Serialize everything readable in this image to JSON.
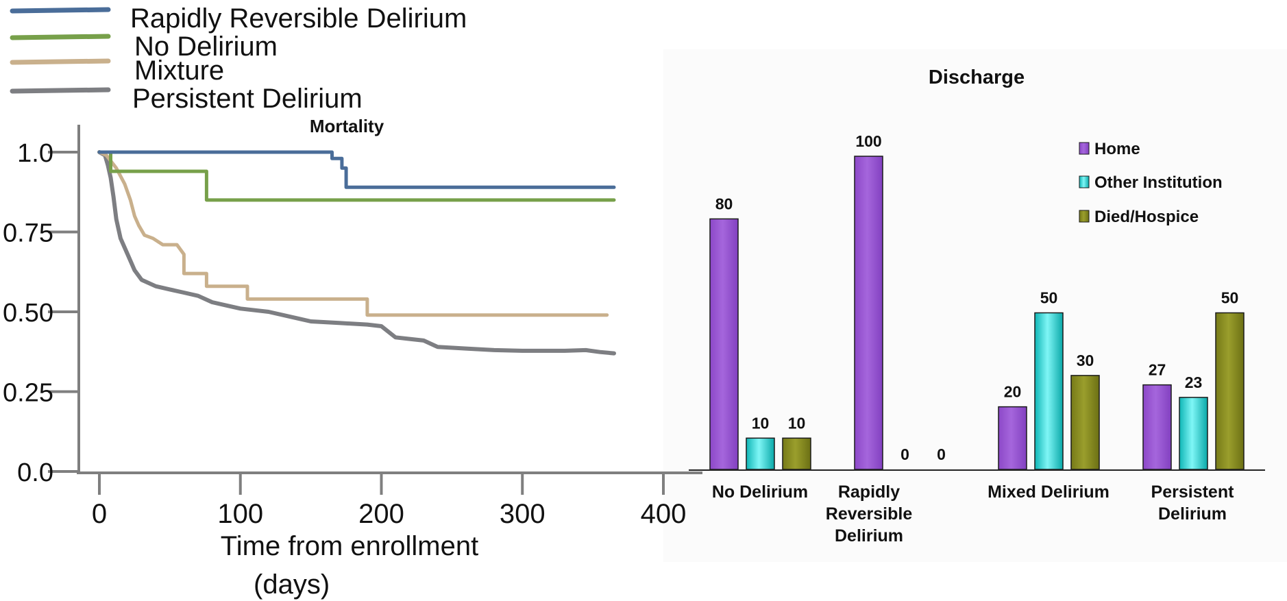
{
  "colors": {
    "rapid": "#4a6d99",
    "none": "#77a04a",
    "mixture": "#c9b08c",
    "persistent": "#7d7e82",
    "axis": "#7f7f7f",
    "home": "#9b59d0",
    "other": "#19d8d8",
    "died": "#868a22"
  },
  "chart_data": [
    {
      "type": "line",
      "title": "Mortality",
      "xlabel": "Time from enrollment (days)",
      "xlabel_lines": [
        "Time from enrollment",
        "(days)"
      ],
      "ylabel": "",
      "xlim": [
        0,
        400
      ],
      "ylim": [
        0,
        1
      ],
      "x_ticks": [
        0,
        100,
        200,
        300,
        400
      ],
      "x_tick_labels": [
        "0",
        "100",
        "200",
        "300",
        "400"
      ],
      "y_ticks": [
        0,
        0.25,
        0.5,
        0.75,
        1.0
      ],
      "y_tick_labels": [
        "0.0",
        "0.25",
        "0.50",
        "0.75",
        "1.0"
      ],
      "legend_position": "top-left",
      "series": [
        {
          "name": "Rapidly Reversible Delirium",
          "key": "rapid",
          "step": true,
          "x": [
            0,
            165,
            165,
            172,
            172,
            175,
            175,
            365
          ],
          "y": [
            1.0,
            1.0,
            0.98,
            0.98,
            0.95,
            0.95,
            0.89,
            0.89
          ]
        },
        {
          "name": "No Delirium",
          "key": "none",
          "step": true,
          "x": [
            0,
            8,
            8,
            76,
            76,
            365
          ],
          "y": [
            1.0,
            1.0,
            0.94,
            0.94,
            0.85,
            0.85
          ]
        },
        {
          "name": "Mixture",
          "key": "mixture",
          "step": true,
          "x": [
            0,
            5,
            12,
            18,
            22,
            25,
            28,
            32,
            38,
            45,
            55,
            60,
            60,
            76,
            76,
            105,
            105,
            190,
            190,
            360
          ],
          "y": [
            1.0,
            0.99,
            0.95,
            0.9,
            0.85,
            0.8,
            0.77,
            0.74,
            0.73,
            0.71,
            0.71,
            0.68,
            0.62,
            0.62,
            0.58,
            0.58,
            0.54,
            0.54,
            0.49,
            0.49
          ]
        },
        {
          "name": "Persistent Delirium",
          "key": "persistent",
          "step": false,
          "x": [
            0,
            4,
            6,
            8,
            10,
            12,
            15,
            20,
            25,
            30,
            40,
            50,
            60,
            70,
            80,
            90,
            100,
            120,
            140,
            150,
            170,
            190,
            200,
            210,
            220,
            230,
            240,
            260,
            280,
            300,
            330,
            345,
            355,
            365
          ],
          "y": [
            1.0,
            0.99,
            0.96,
            0.92,
            0.86,
            0.79,
            0.73,
            0.68,
            0.63,
            0.6,
            0.58,
            0.57,
            0.56,
            0.55,
            0.53,
            0.52,
            0.51,
            0.5,
            0.48,
            0.47,
            0.465,
            0.46,
            0.455,
            0.42,
            0.415,
            0.41,
            0.39,
            0.385,
            0.38,
            0.378,
            0.378,
            0.38,
            0.374,
            0.37
          ]
        }
      ]
    },
    {
      "type": "bar",
      "title": "Discharge",
      "xlabel": "",
      "ylabel": "",
      "ylim": [
        0,
        100
      ],
      "legend_position": "top-right",
      "categories": [
        "No Delirium",
        "Rapidly Reversible Delirium",
        "Mixed Delirium",
        "Persistent Delirium"
      ],
      "category_lines": [
        [
          "No Delirium"
        ],
        [
          "Rapidly",
          "Reversible",
          "Delirium"
        ],
        [
          "Mixed Delirium"
        ],
        [
          "Persistent",
          "Delirium"
        ]
      ],
      "series": [
        {
          "name": "Home",
          "key": "home",
          "values": [
            80,
            100,
            20,
            27
          ]
        },
        {
          "name": "Other Institution",
          "key": "other",
          "values": [
            10,
            0,
            50,
            23
          ]
        },
        {
          "name": "Died/Hospice",
          "key": "died",
          "values": [
            10,
            0,
            30,
            50
          ]
        }
      ]
    }
  ]
}
